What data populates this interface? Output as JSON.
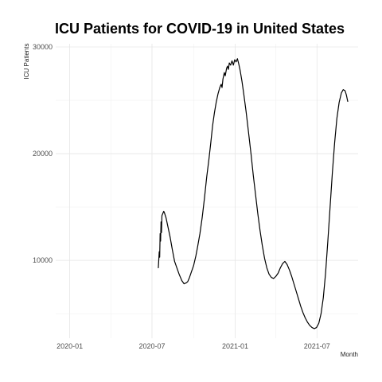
{
  "chart_data": {
    "type": "line",
    "title": "ICU Patients for COVID-19 in United States",
    "xlabel": "Month",
    "ylabel": "ICU Patients",
    "x_ticks": [
      "2020-01",
      "2020-07",
      "2021-01",
      "2021-07"
    ],
    "x_tick_dates": [
      "2020-01-01",
      "2020-07-01",
      "2021-01-01",
      "2021-07-01"
    ],
    "y_ticks": [
      10000,
      20000,
      30000
    ],
    "y_tick_labels": [
      "10000",
      "20000",
      "30000"
    ],
    "xlim": [
      "2019-12-01",
      "2021-09-30"
    ],
    "ylim": [
      2700,
      30300
    ],
    "grid": true,
    "legend": "none",
    "series": [
      {
        "color": "#000000",
        "points": [
          [
            "2020-07-15",
            9300
          ],
          [
            "2020-07-17",
            10800
          ],
          [
            "2020-07-18",
            10300
          ],
          [
            "2020-07-19",
            12500
          ],
          [
            "2020-07-20",
            11800
          ],
          [
            "2020-07-21",
            13600
          ],
          [
            "2020-07-22",
            12600
          ],
          [
            "2020-07-23",
            14200
          ],
          [
            "2020-07-25",
            14400
          ],
          [
            "2020-07-27",
            14600
          ],
          [
            "2020-07-29",
            14400
          ],
          [
            "2020-08-01",
            14000
          ],
          [
            "2020-08-05",
            13200
          ],
          [
            "2020-08-10",
            12200
          ],
          [
            "2020-08-15",
            11000
          ],
          [
            "2020-08-20",
            9900
          ],
          [
            "2020-08-25",
            9300
          ],
          [
            "2020-08-30",
            8700
          ],
          [
            "2020-09-05",
            8100
          ],
          [
            "2020-09-10",
            7800
          ],
          [
            "2020-09-15",
            7900
          ],
          [
            "2020-09-18",
            8000
          ],
          [
            "2020-09-22",
            8400
          ],
          [
            "2020-09-26",
            8900
          ],
          [
            "2020-10-01",
            9500
          ],
          [
            "2020-10-06",
            10400
          ],
          [
            "2020-10-10",
            11300
          ],
          [
            "2020-10-15",
            12500
          ],
          [
            "2020-10-20",
            14000
          ],
          [
            "2020-10-25",
            15800
          ],
          [
            "2020-10-30",
            17800
          ],
          [
            "2020-11-04",
            19500
          ],
          [
            "2020-11-08",
            21000
          ],
          [
            "2020-11-12",
            22600
          ],
          [
            "2020-11-16",
            23800
          ],
          [
            "2020-11-20",
            24800
          ],
          [
            "2020-11-24",
            25600
          ],
          [
            "2020-11-28",
            26200
          ],
          [
            "2020-12-01",
            26500
          ],
          [
            "2020-12-03",
            26200
          ],
          [
            "2020-12-05",
            27000
          ],
          [
            "2020-12-08",
            27600
          ],
          [
            "2020-12-10",
            27300
          ],
          [
            "2020-12-13",
            28000
          ],
          [
            "2020-12-15",
            28200
          ],
          [
            "2020-12-17",
            27900
          ],
          [
            "2020-12-19",
            28500
          ],
          [
            "2020-12-22",
            28300
          ],
          [
            "2020-12-25",
            28700
          ],
          [
            "2020-12-28",
            28300
          ],
          [
            "2020-12-31",
            28800
          ],
          [
            "2021-01-03",
            28600
          ],
          [
            "2021-01-06",
            28900
          ],
          [
            "2021-01-09",
            28400
          ],
          [
            "2021-01-12",
            27800
          ],
          [
            "2021-01-16",
            26800
          ],
          [
            "2021-01-20",
            25600
          ],
          [
            "2021-01-25",
            24000
          ],
          [
            "2021-01-30",
            22200
          ],
          [
            "2021-02-05",
            20000
          ],
          [
            "2021-02-10",
            18000
          ],
          [
            "2021-02-15",
            16200
          ],
          [
            "2021-02-20",
            14400
          ],
          [
            "2021-02-25",
            12800
          ],
          [
            "2021-03-02",
            11400
          ],
          [
            "2021-03-07",
            10200
          ],
          [
            "2021-03-12",
            9300
          ],
          [
            "2021-03-17",
            8700
          ],
          [
            "2021-03-22",
            8400
          ],
          [
            "2021-03-27",
            8300
          ],
          [
            "2021-04-01",
            8500
          ],
          [
            "2021-04-06",
            8800
          ],
          [
            "2021-04-11",
            9300
          ],
          [
            "2021-04-16",
            9700
          ],
          [
            "2021-04-21",
            9900
          ],
          [
            "2021-04-26",
            9600
          ],
          [
            "2021-05-01",
            9100
          ],
          [
            "2021-05-06",
            8500
          ],
          [
            "2021-05-11",
            7800
          ],
          [
            "2021-05-16",
            7100
          ],
          [
            "2021-05-21",
            6400
          ],
          [
            "2021-05-26",
            5700
          ],
          [
            "2021-05-31",
            5100
          ],
          [
            "2021-06-05",
            4600
          ],
          [
            "2021-06-10",
            4200
          ],
          [
            "2021-06-15",
            3900
          ],
          [
            "2021-06-20",
            3700
          ],
          [
            "2021-06-25",
            3600
          ],
          [
            "2021-06-30",
            3700
          ],
          [
            "2021-07-05",
            4100
          ],
          [
            "2021-07-10",
            5000
          ],
          [
            "2021-07-15",
            6500
          ],
          [
            "2021-07-20",
            8800
          ],
          [
            "2021-07-25",
            11800
          ],
          [
            "2021-07-30",
            15000
          ],
          [
            "2021-08-04",
            18200
          ],
          [
            "2021-08-09",
            21000
          ],
          [
            "2021-08-14",
            23300
          ],
          [
            "2021-08-19",
            24800
          ],
          [
            "2021-08-24",
            25700
          ],
          [
            "2021-08-28",
            26000
          ],
          [
            "2021-09-01",
            25900
          ],
          [
            "2021-09-04",
            25500
          ],
          [
            "2021-09-07",
            24900
          ]
        ]
      }
    ]
  }
}
